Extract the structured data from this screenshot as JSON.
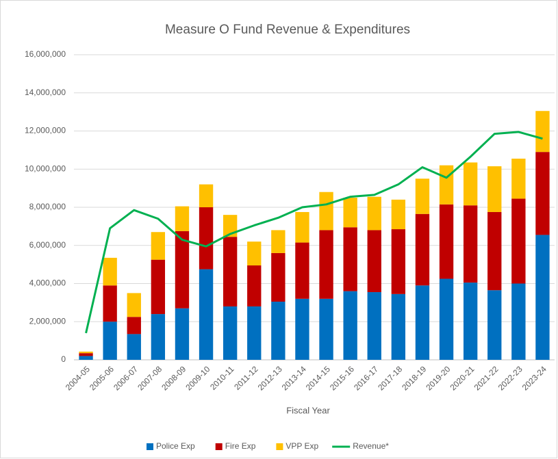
{
  "chart_data": {
    "type": "stacked_bar_line",
    "title": "Measure O Fund Revenue & Expenditures",
    "x_label": "Fiscal Year",
    "categories": [
      "2004-05",
      "2005-06",
      "2006-07",
      "2007-08",
      "2008-09",
      "2009-10",
      "2010-11",
      "2011-12",
      "2012-13",
      "2013-14",
      "2014-15",
      "2015-16",
      "2016-17",
      "2017-18",
      "2018-19",
      "2019-20",
      "2020-21",
      "2021-22",
      "2022-23",
      "2023-24"
    ],
    "series": [
      {
        "name": "Police Exp",
        "color": "#0070c0",
        "kind": "bar",
        "values": [
          200000,
          2000000,
          1350000,
          2400000,
          2700000,
          4750000,
          2800000,
          2800000,
          3050000,
          3200000,
          3200000,
          3600000,
          3550000,
          3450000,
          3900000,
          4250000,
          4050000,
          3650000,
          4000000,
          6550000
        ]
      },
      {
        "name": "Fire Exp",
        "color": "#c00000",
        "kind": "bar",
        "values": [
          150000,
          1900000,
          900000,
          2850000,
          4050000,
          3250000,
          3650000,
          2150000,
          2550000,
          2950000,
          3600000,
          3350000,
          3250000,
          3400000,
          3750000,
          3900000,
          4050000,
          4100000,
          4450000,
          4350000
        ]
      },
      {
        "name": "VPP Exp",
        "color": "#ffc000",
        "kind": "bar",
        "values": [
          80000,
          1450000,
          1250000,
          1450000,
          1300000,
          1200000,
          1150000,
          1250000,
          1200000,
          1600000,
          2000000,
          1550000,
          1750000,
          1550000,
          1850000,
          2050000,
          2250000,
          2400000,
          2100000,
          2150000
        ]
      },
      {
        "name": "Revenue*",
        "color": "#00b050",
        "kind": "line",
        "values": [
          1400000,
          6900000,
          7850000,
          7400000,
          6300000,
          5950000,
          6600000,
          7050000,
          7450000,
          8000000,
          8150000,
          8550000,
          8650000,
          9200000,
          10100000,
          9550000,
          10650000,
          11850000,
          11950000,
          11600000
        ]
      }
    ],
    "ylim": [
      0,
      16000000
    ],
    "yticks": [
      0,
      {
        "value": 2000000,
        "label": "2,000,000"
      },
      {
        "value": 4000000,
        "label": "4,000,000"
      },
      {
        "value": 6000000,
        "label": "6,000,000"
      },
      {
        "value": 8000000,
        "label": "8,000,000"
      },
      {
        "value": 10000000,
        "label": "10,000,000"
      },
      {
        "value": 12000000,
        "label": "12,000,000"
      },
      {
        "value": 14000000,
        "label": "14,000,000"
      },
      {
        "value": 16000000,
        "label": "16,000,000"
      }
    ],
    "grid": true,
    "legend": "bottom"
  }
}
